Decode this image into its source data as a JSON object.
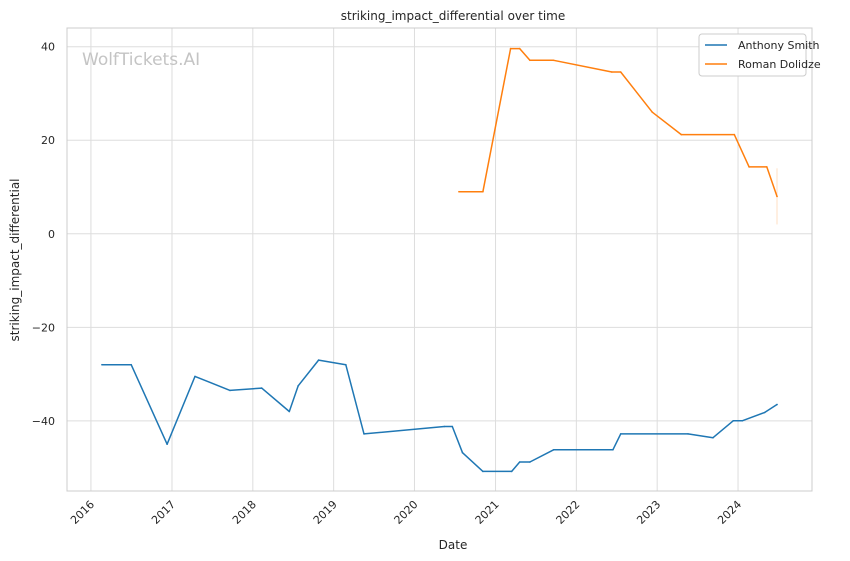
{
  "chart_data": {
    "type": "line",
    "title": "striking_impact_differential over time",
    "xlabel": "Date",
    "ylabel": "striking_impact_differential",
    "watermark": "WolfTickets.AI",
    "x_ticks": [
      "2016",
      "2017",
      "2018",
      "2019",
      "2020",
      "2021",
      "2022",
      "2023",
      "2024"
    ],
    "y_ticks": [
      "40",
      "20",
      "0",
      "−20",
      "−40"
    ],
    "xlim": [
      "2015-09-15",
      "2024-11-30"
    ],
    "ylim": [
      -55,
      44
    ],
    "grid": true,
    "legend_position": "top-right",
    "colors": {
      "Anthony Smith": "#1f77b4",
      "Roman Dolidze": "#ff7f0e"
    },
    "series": [
      {
        "name": "Anthony Smith",
        "points": [
          [
            "2016-02-20",
            -28
          ],
          [
            "2016-07-01",
            -28
          ],
          [
            "2016-12-10",
            -45
          ],
          [
            "2017-04-15",
            -30.5
          ],
          [
            "2017-09-20",
            -33.5
          ],
          [
            "2018-02-10",
            -33
          ],
          [
            "2018-06-15",
            -38
          ],
          [
            "2018-07-25",
            -32.5
          ],
          [
            "2018-10-25",
            -27
          ],
          [
            "2019-02-25",
            -28
          ],
          [
            "2019-05-18",
            -42.8
          ],
          [
            "2020-05-15",
            -41.2
          ],
          [
            "2020-06-20",
            -41.2
          ],
          [
            "2020-08-05",
            -46.8
          ],
          [
            "2020-11-05",
            -50.8
          ],
          [
            "2021-03-15",
            -50.8
          ],
          [
            "2021-04-20",
            -48.8
          ],
          [
            "2021-06-05",
            -48.8
          ],
          [
            "2021-09-20",
            -46.2
          ],
          [
            "2022-06-15",
            -46.2
          ],
          [
            "2022-07-20",
            -42.8
          ],
          [
            "2023-05-20",
            -42.8
          ],
          [
            "2023-09-10",
            -43.6
          ],
          [
            "2023-12-10",
            -40
          ],
          [
            "2024-01-20",
            -40
          ],
          [
            "2024-05-01",
            -38.2
          ],
          [
            "2024-06-25",
            -36.5
          ]
        ]
      },
      {
        "name": "Roman Dolidze",
        "points": [
          [
            "2020-07-20",
            9
          ],
          [
            "2020-11-05",
            9
          ],
          [
            "2021-03-10",
            39.6
          ],
          [
            "2021-04-20",
            39.6
          ],
          [
            "2021-06-05",
            37.1
          ],
          [
            "2021-09-20",
            37.1
          ],
          [
            "2022-06-10",
            34.6
          ],
          [
            "2022-07-20",
            34.6
          ],
          [
            "2022-12-10",
            26
          ],
          [
            "2023-04-20",
            21.2
          ],
          [
            "2023-12-15",
            21.2
          ],
          [
            "2024-02-20",
            14.3
          ],
          [
            "2024-05-10",
            14.3
          ],
          [
            "2024-06-25",
            8
          ]
        ]
      }
    ]
  }
}
